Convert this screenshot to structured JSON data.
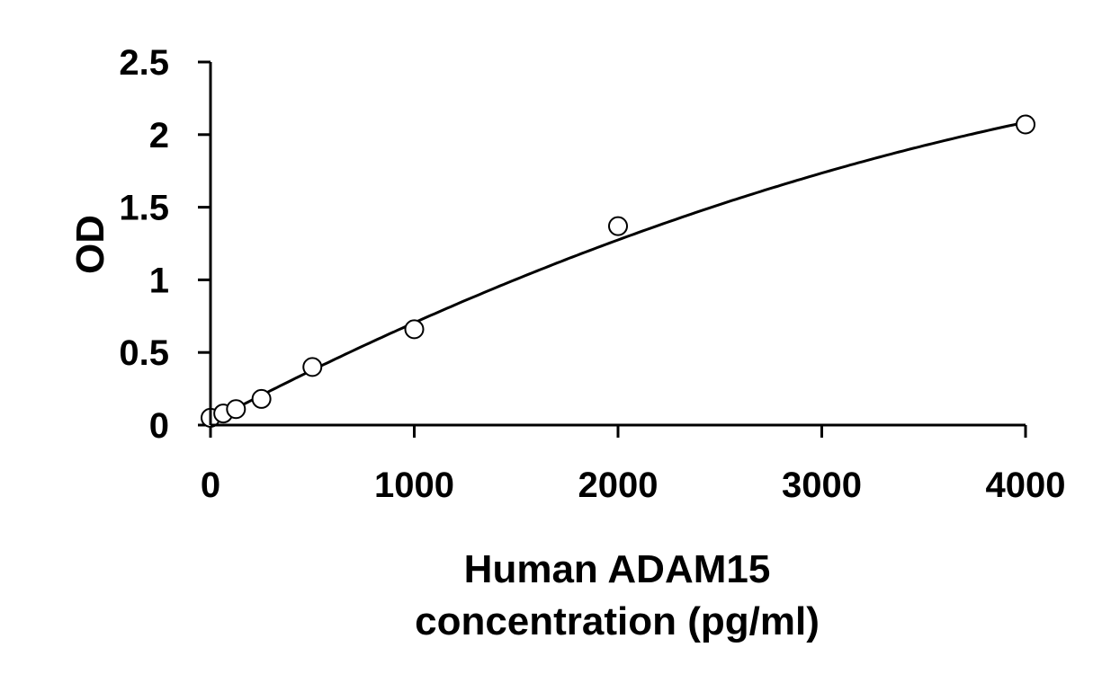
{
  "chart_data": {
    "type": "scatter",
    "title": "",
    "xlabel_lines": [
      "Human ADAM15",
      "concentration (pg/ml)"
    ],
    "ylabel": "OD",
    "xlim": [
      0,
      4000
    ],
    "ylim": [
      0,
      2.5
    ],
    "x_ticks": [
      0,
      1000,
      2000,
      3000,
      4000
    ],
    "x_tick_labels": [
      "0",
      "1000",
      "2000",
      "3000",
      "4000"
    ],
    "y_ticks": [
      0,
      0.5,
      1,
      1.5,
      2,
      2.5
    ],
    "y_tick_labels": [
      "0",
      "0.5",
      "1",
      "1.5",
      "2",
      "2.5"
    ],
    "grid": false,
    "legend": "none",
    "series": [
      {
        "kind": "points",
        "x": [
          0,
          62.5,
          125,
          250,
          500,
          1000,
          2000,
          4000
        ],
        "y": [
          0.05,
          0.08,
          0.11,
          0.18,
          0.4,
          0.66,
          1.37,
          2.07
        ]
      }
    ],
    "fit_curve": {
      "kind": "quadratic",
      "coefficients": [
        0.025,
        0.000735,
        -5.5e-08
      ]
    }
  }
}
